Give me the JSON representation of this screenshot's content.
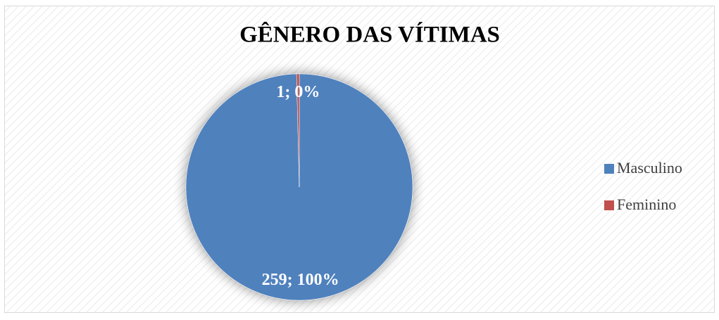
{
  "chart_data": {
    "type": "pie",
    "title": "GÊNERO DAS VÍTIMAS",
    "categories": [
      "Masculino",
      "Feminino"
    ],
    "values": [
      259,
      1
    ],
    "value_labels": [
      "259; 100%",
      "1; 0%"
    ],
    "colors": [
      "#4f81bd",
      "#c0504d"
    ],
    "legend": "right"
  }
}
